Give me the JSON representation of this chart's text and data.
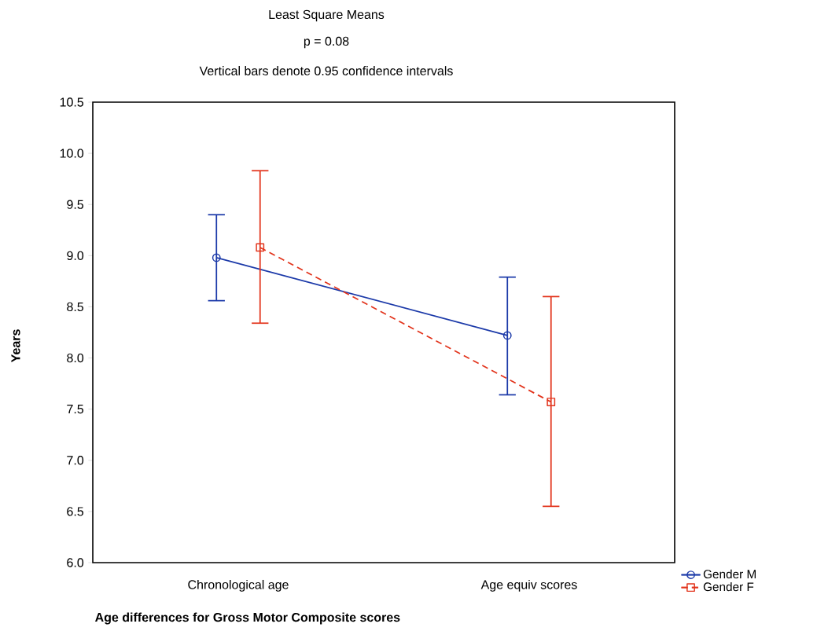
{
  "chart_data": {
    "type": "line",
    "title": "Least Square Means",
    "subtitle": "p = 0.08",
    "annotations": [
      "Vertical bars denote 0.95 confidence intervals"
    ],
    "xlabel": "Age differences for Gross Motor Composite scores",
    "ylabel": "Years",
    "categories": [
      "Chronological age",
      "Age equiv scores"
    ],
    "series": [
      {
        "name": "Gender M",
        "color": "#1c3aa9",
        "values": [
          8.98,
          8.22
        ],
        "errors": [
          [
            8.56,
            9.4
          ],
          [
            7.64,
            8.79
          ]
        ],
        "marker": "circle",
        "line_style": "solid"
      },
      {
        "name": "Gender F",
        "color": "#e2341c",
        "values": [
          9.08,
          7.57
        ],
        "errors": [
          [
            8.34,
            9.83
          ],
          [
            6.55,
            8.6
          ]
        ],
        "marker": "square",
        "line_style": "dashed"
      }
    ],
    "ylim": [
      6.0,
      10.5
    ],
    "yticks": [
      {
        "value": 6,
        "label": "6.0"
      },
      {
        "value": 6.5,
        "label": "6.5"
      },
      {
        "value": 7,
        "label": "7.0"
      },
      {
        "value": 7.5,
        "label": "7.5"
      },
      {
        "value": 8,
        "label": "8.0"
      },
      {
        "value": 8.5,
        "label": "8.5"
      },
      {
        "value": 9,
        "label": "9.0"
      },
      {
        "value": 9.5,
        "label": "9.5"
      },
      {
        "value": 10,
        "label": "10.0"
      },
      {
        "value": 10.5,
        "label": "10.5"
      }
    ],
    "grid": false,
    "legend": "bottom right"
  }
}
